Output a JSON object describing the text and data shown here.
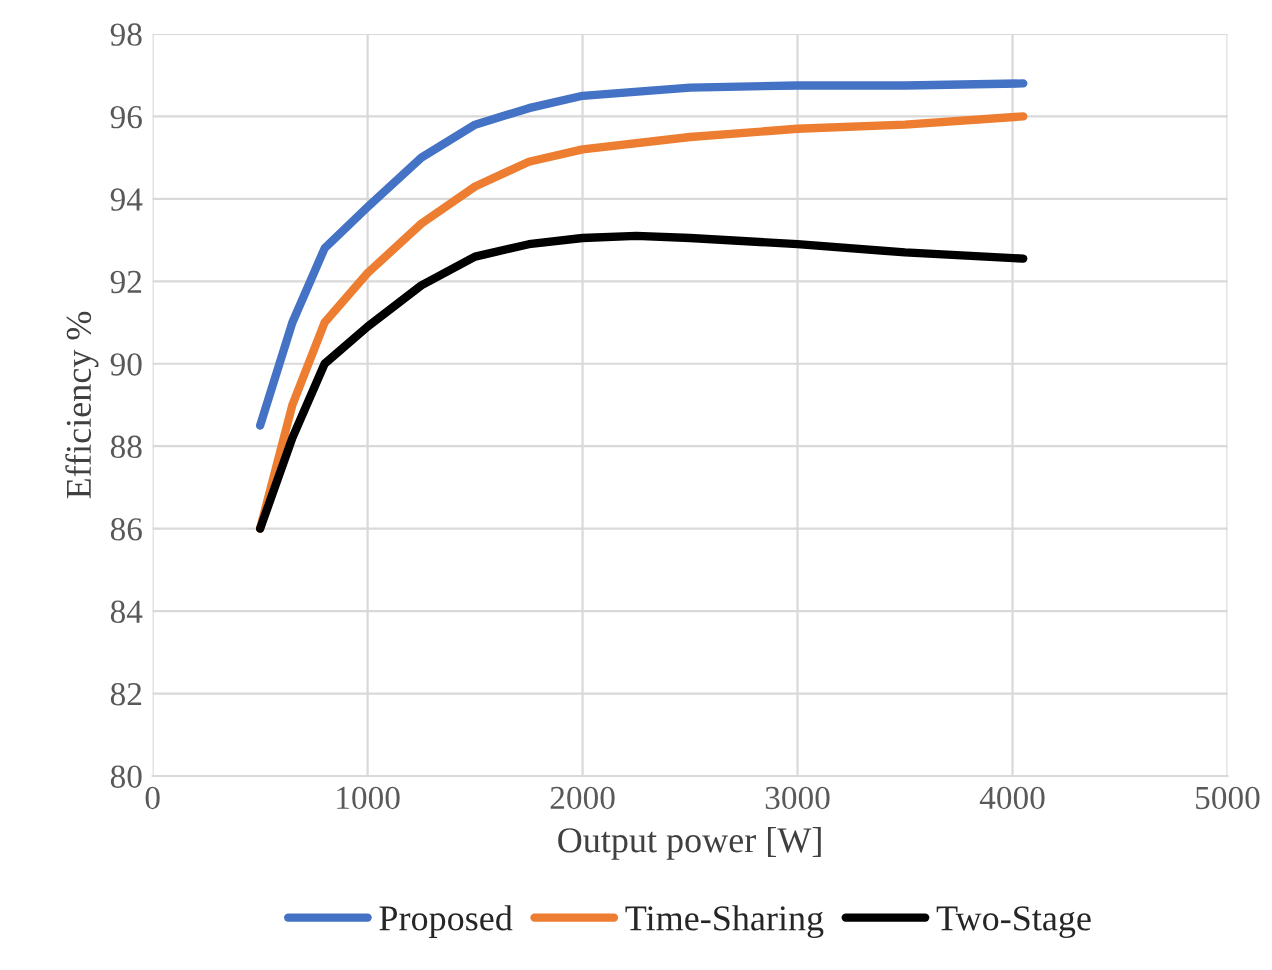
{
  "chart_data": {
    "type": "line",
    "xlabel": "Output power [W]",
    "ylabel": "Efficiency %",
    "xlim": [
      0,
      5000
    ],
    "xticks": [
      0,
      1000,
      2000,
      3000,
      4000,
      5000
    ],
    "ylim": [
      80,
      98
    ],
    "yticks": [
      80,
      82,
      84,
      86,
      88,
      90,
      92,
      94,
      96,
      98
    ],
    "grid": true,
    "legend": "bottom",
    "line_style": "solid",
    "series": [
      {
        "name": "Proposed",
        "color": "#4472c4",
        "x": [
          500,
          650,
          800,
          1000,
          1250,
          1500,
          1750,
          2000,
          2500,
          3000,
          3500,
          4050
        ],
        "values": [
          88.5,
          91.0,
          92.8,
          93.8,
          95.0,
          95.8,
          96.2,
          96.5,
          96.7,
          96.75,
          96.75,
          96.8
        ]
      },
      {
        "name": "Time-Sharing",
        "color": "#ed7d31",
        "x": [
          500,
          650,
          800,
          1000,
          1250,
          1500,
          1750,
          2000,
          2500,
          3000,
          3500,
          4050
        ],
        "values": [
          86.0,
          89.0,
          91.0,
          92.2,
          93.4,
          94.3,
          94.9,
          95.2,
          95.5,
          95.7,
          95.8,
          96.0
        ]
      },
      {
        "name": "Two-Stage",
        "color": "#000000",
        "x": [
          500,
          650,
          800,
          1000,
          1250,
          1500,
          1750,
          2000,
          2250,
          2500,
          3000,
          3500,
          4050
        ],
        "values": [
          86.0,
          88.2,
          90.0,
          90.9,
          91.9,
          92.6,
          92.9,
          93.05,
          93.1,
          93.05,
          92.9,
          92.7,
          92.55
        ]
      }
    ]
  }
}
